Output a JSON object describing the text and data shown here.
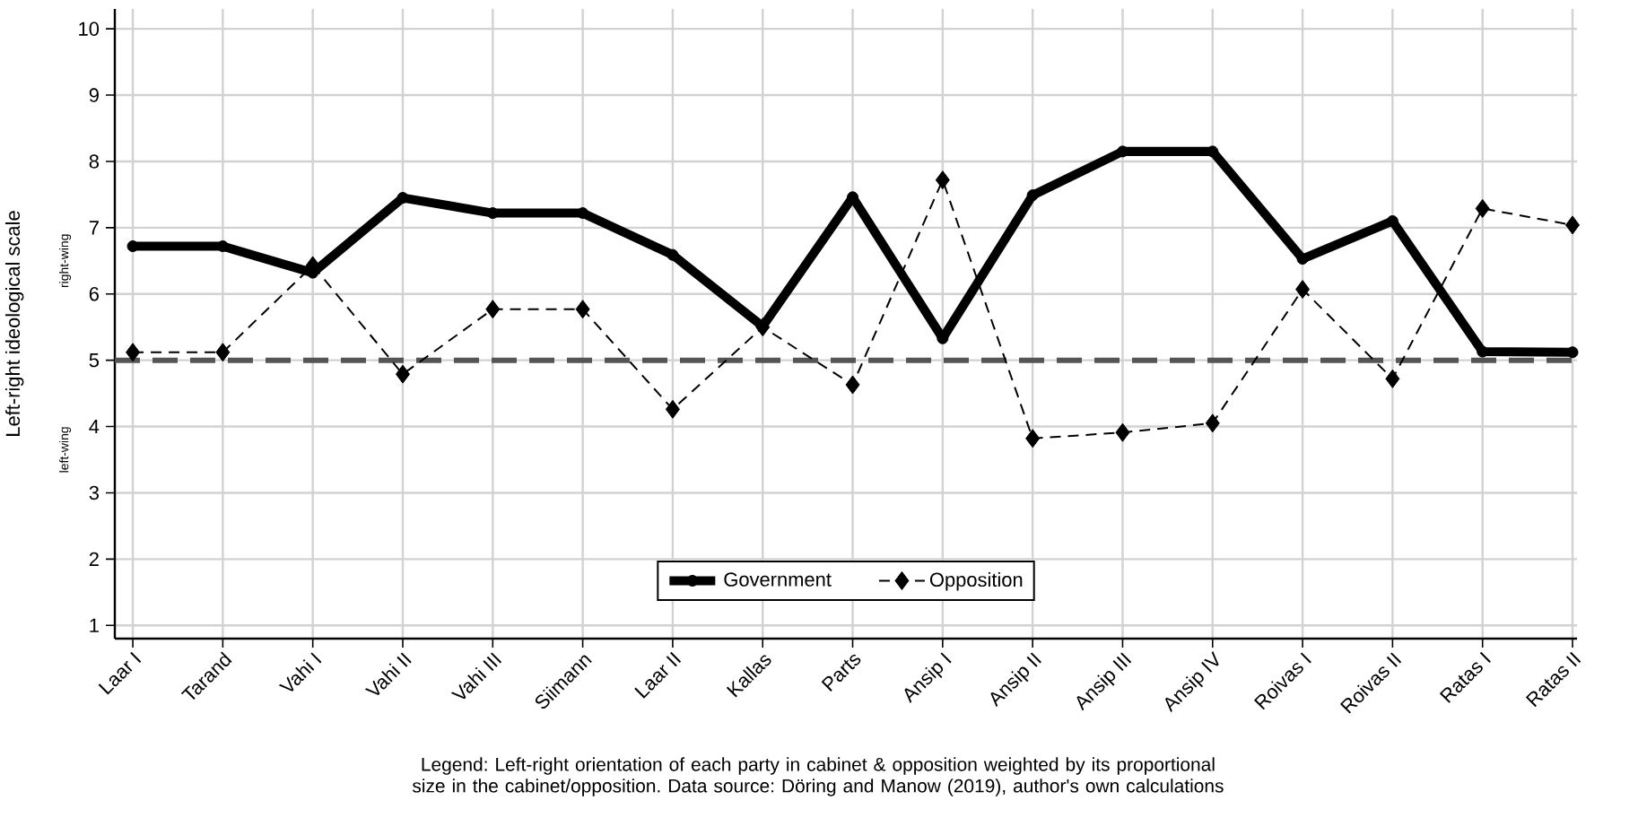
{
  "chart_data": {
    "type": "line",
    "ylabel": "Left-right ideological scale",
    "categories": [
      "Laar I",
      "Tarand",
      "Vahi I",
      "Vahi II",
      "Vahi III",
      "Siimann",
      "Laar II",
      "Kallas",
      "Parts",
      "Ansip I",
      "Ansip II",
      "Ansip III",
      "Ansip IV",
      "Roivas I",
      "Roivas II",
      "Ratas I",
      "Ratas II"
    ],
    "series": [
      {
        "name": "Government",
        "color": "#000000",
        "marker": "circle",
        "line_style": "solid",
        "values": [
          6.72,
          6.72,
          6.32,
          7.45,
          7.22,
          7.22,
          6.59,
          5.51,
          7.46,
          5.33,
          7.49,
          8.15,
          8.15,
          6.53,
          7.1,
          5.13,
          5.12
        ]
      },
      {
        "name": "Opposition",
        "color": "#000000",
        "marker": "diamond",
        "line_style": "dashed",
        "values": [
          5.12,
          5.12,
          6.43,
          4.79,
          5.77,
          5.77,
          4.26,
          5.5,
          4.63,
          7.72,
          3.82,
          3.91,
          4.05,
          6.07,
          4.72,
          7.29,
          7.04
        ]
      }
    ],
    "ylim": [
      0.8,
      10.3
    ],
    "yticks": [
      1,
      2,
      3,
      4,
      5,
      6,
      7,
      8,
      9,
      10
    ],
    "grid": true,
    "legend": "bottom",
    "ref_lines": [
      {
        "axis": "y",
        "value": 5,
        "color": "#555555",
        "line_style": "dashed"
      }
    ],
    "annotations": [
      "Legend: Left-right orientation of each party in cabinet & opposition weighted by its proportional size in the cabinet/opposition. Data source: Döring and Manow (2019), author's own calculations",
      "right-wing",
      "left-wing"
    ]
  }
}
